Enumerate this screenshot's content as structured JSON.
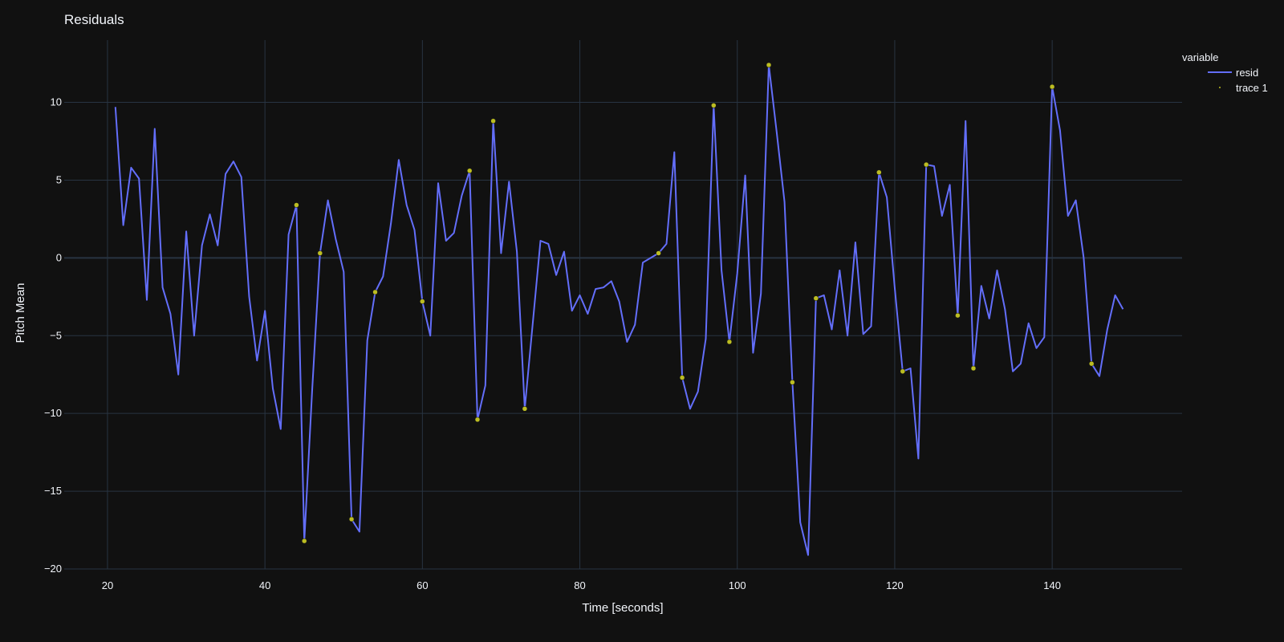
{
  "chart_data": {
    "type": "line",
    "title": "Residuals",
    "xlabel": "Time [seconds]",
    "ylabel": "Pitch Mean",
    "xlim": [
      14.5,
      156.5
    ],
    "ylim": [
      -20.0,
      14.0
    ],
    "grid": true,
    "legend_title": "variable",
    "legend_position": "top-right",
    "x_ticks": [
      20,
      40,
      60,
      80,
      100,
      120,
      140
    ],
    "y_ticks": [
      -20,
      -15,
      -10,
      -5,
      0,
      5,
      10
    ],
    "x_tick_labels": [
      "20",
      "40",
      "60",
      "80",
      "100",
      "120",
      "140"
    ],
    "y_tick_labels": [
      "−20",
      "−15",
      "−10",
      "−5",
      "0",
      "5",
      "10"
    ],
    "series": [
      {
        "name": "resid",
        "mode": "lines",
        "color": "#636efa",
        "x": [
          21,
          22,
          23,
          24,
          25,
          26,
          27,
          28,
          29,
          30,
          31,
          32,
          33,
          34,
          35,
          36,
          37,
          38,
          39,
          40,
          41,
          42,
          43,
          44,
          45,
          46,
          47,
          48,
          49,
          50,
          51,
          52,
          53,
          54,
          55,
          56,
          57,
          58,
          59,
          60,
          61,
          62,
          63,
          64,
          65,
          66,
          67,
          68,
          69,
          70,
          71,
          72,
          73,
          74,
          75,
          76,
          77,
          78,
          79,
          80,
          81,
          82,
          83,
          84,
          85,
          86,
          87,
          88,
          89,
          90,
          91,
          92,
          93,
          94,
          95,
          96,
          97,
          98,
          99,
          100,
          101,
          102,
          103,
          104,
          105,
          106,
          107,
          108,
          109,
          110,
          111,
          112,
          113,
          114,
          115,
          116,
          117,
          118,
          119,
          120,
          121,
          122,
          123,
          124,
          125,
          126,
          127,
          128,
          129,
          130,
          131,
          132,
          133,
          134,
          135,
          136,
          137,
          138,
          139,
          140,
          141,
          142,
          143,
          144,
          145,
          146,
          147,
          148,
          149
        ],
        "y": [
          9.7,
          2.1,
          5.8,
          5.1,
          -2.7,
          8.3,
          -1.9,
          -3.6,
          -7.5,
          1.7,
          -5.0,
          0.8,
          2.8,
          0.8,
          5.4,
          6.2,
          5.2,
          -2.5,
          -6.6,
          -3.4,
          -8.4,
          -11.0,
          1.5,
          3.4,
          -18.2,
          -8.5,
          0.3,
          3.7,
          1.2,
          -0.9,
          -16.8,
          -17.6,
          -5.3,
          -2.2,
          -1.2,
          2.2,
          6.3,
          3.4,
          1.8,
          -2.8,
          -5.0,
          4.8,
          1.1,
          1.6,
          4.0,
          5.6,
          -10.4,
          -8.2,
          8.8,
          0.3,
          4.9,
          0.4,
          -9.7,
          -4.3,
          1.1,
          0.9,
          -1.1,
          0.4,
          -3.4,
          -2.4,
          -3.6,
          -2.0,
          -1.9,
          -1.5,
          -2.8,
          -5.4,
          -4.3,
          -0.3,
          0.0,
          0.3,
          0.9,
          6.8,
          -7.7,
          -9.7,
          -8.6,
          -5.2,
          9.8,
          -0.8,
          -5.4,
          -1.0,
          5.3,
          -6.1,
          -2.3,
          12.4,
          8.1,
          3.6,
          -8.0,
          -17.0,
          -19.1,
          -2.6,
          -2.4,
          -4.6,
          -0.8,
          -5.0,
          1.0,
          -4.9,
          -4.4,
          5.5,
          3.9,
          -1.9,
          -7.3,
          -7.1,
          -12.9,
          6.0,
          5.9,
          2.7,
          4.7,
          -3.7,
          8.8,
          -7.1,
          -1.8,
          -3.9,
          -0.8,
          -3.3,
          -7.3,
          -6.8,
          -4.2,
          -5.8,
          -5.1,
          11.0,
          8.2,
          2.7,
          3.7,
          0.0,
          -6.8,
          -7.6,
          -4.6,
          -2.4,
          -3.3
        ]
      },
      {
        "name": "trace 1",
        "mode": "markers",
        "color": "#bcbd22",
        "x": [
          44,
          45,
          47,
          51,
          54,
          60,
          66,
          67,
          69,
          73,
          90,
          93,
          97,
          99,
          104,
          107,
          110,
          118,
          121,
          124,
          128,
          130,
          140,
          145
        ],
        "y": [
          3.4,
          -18.2,
          0.3,
          -16.8,
          -2.2,
          -2.8,
          5.6,
          -10.4,
          8.8,
          -9.7,
          0.3,
          -7.7,
          9.8,
          -5.4,
          12.4,
          -8.0,
          -2.6,
          5.5,
          -7.3,
          6.0,
          -3.7,
          -7.1,
          11.0,
          -6.8
        ]
      }
    ]
  },
  "colors": {
    "background": "#111111",
    "grid": "#283442",
    "zeroline": "#283442",
    "text": "#f2f5fa"
  }
}
